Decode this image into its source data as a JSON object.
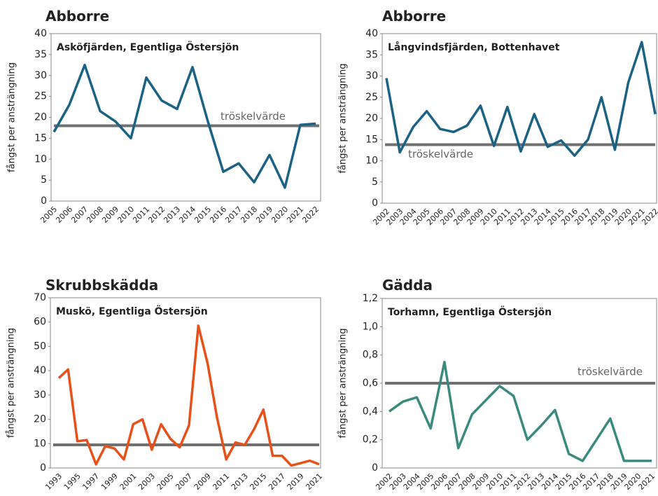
{
  "chart_data": [
    {
      "type": "line",
      "title": "Abborre",
      "subtitle": "Asköfjärden, Egentliga Östersjön",
      "ylabel": "fångst per ansträngning",
      "categories": [
        "2005",
        "2006",
        "2007",
        "2008",
        "2009",
        "2010",
        "2011",
        "2012",
        "2013",
        "2014",
        "2015",
        "2016",
        "2017",
        "2018",
        "2019",
        "2020",
        "2021",
        "2022"
      ],
      "values": [
        16.5,
        23,
        32.5,
        21.5,
        19,
        15,
        29.5,
        24,
        22,
        32,
        19,
        7,
        9,
        4.5,
        11,
        3.2,
        18.2,
        18.5
      ],
      "color": "#1b6285",
      "threshold": 18,
      "threshold_label": "tröskelvärde",
      "threshold_color": "#707070",
      "ylim": [
        0,
        40
      ],
      "yticks": [
        0,
        5,
        10,
        15,
        20,
        25,
        30,
        35,
        40
      ]
    },
    {
      "type": "line",
      "title": "Abborre",
      "subtitle": "Långvindsfjärden, Bottenhavet",
      "ylabel": "fångst per ansträngning",
      "categories": [
        "2002",
        "2003",
        "2004",
        "2005",
        "2006",
        "2007",
        "2008",
        "2009",
        "2010",
        "2011",
        "2012",
        "2013",
        "2014",
        "2015",
        "2016",
        "2017",
        "2018",
        "2019",
        "2020",
        "2021",
        "2022"
      ],
      "values": [
        29.5,
        12,
        18,
        21.7,
        17.5,
        16.8,
        18.3,
        23,
        13.5,
        22.7,
        12.2,
        21,
        13.3,
        14.8,
        11.2,
        15,
        25,
        12.6,
        28.5,
        38,
        21
      ],
      "color": "#1b6285",
      "threshold": 13.8,
      "threshold_label": "tröskelvärde",
      "threshold_color": "#707070",
      "ylim": [
        0,
        40
      ],
      "yticks": [
        0,
        5,
        10,
        15,
        20,
        25,
        30,
        35,
        40
      ]
    },
    {
      "type": "line",
      "title": "Skrubbskädda",
      "subtitle": "Muskö, Egentliga Östersjön",
      "ylabel": "fångst per ansträngning",
      "categories": [
        "1993",
        null,
        "1995",
        null,
        "1997",
        null,
        "1999",
        null,
        "2001",
        null,
        "2003",
        null,
        "2005",
        null,
        "2007",
        null,
        "2009",
        null,
        "2011",
        null,
        "2013",
        null,
        "2015",
        null,
        "2017",
        null,
        "2019",
        null,
        "2021"
      ],
      "values": [
        37,
        40.5,
        11,
        11.5,
        1.5,
        9,
        8,
        3.5,
        18,
        20,
        7.5,
        18,
        12,
        8.5,
        17.5,
        58.5,
        43,
        21,
        3.5,
        10.5,
        9.5,
        16,
        24,
        5,
        5,
        1,
        2,
        3,
        1.5
      ],
      "color": "#e8501a",
      "threshold": 9.5,
      "threshold_color": "#707070",
      "ylim": [
        0,
        70
      ],
      "yticks": [
        0,
        10,
        20,
        30,
        40,
        50,
        60,
        70
      ]
    },
    {
      "type": "line",
      "title": "Gädda",
      "subtitle": "Torhamn, Egentliga Östersjön",
      "ylabel": "fångst per ansträngning",
      "categories": [
        "2002",
        "2003",
        "2004",
        "2005",
        "2006",
        "2007",
        "2008",
        "2009",
        "2010",
        "2011",
        "2012",
        "2013",
        "2014",
        "2015",
        "2016",
        "2017",
        "2018",
        "2019",
        "2020",
        "2021"
      ],
      "values": [
        0.4,
        0.47,
        0.5,
        0.28,
        0.75,
        0.14,
        0.38,
        0.48,
        0.58,
        0.51,
        0.2,
        0.3,
        0.41,
        0.1,
        0.05,
        0.2,
        0.35,
        0.05,
        0.05,
        0.05
      ],
      "color": "#3a8a7e",
      "threshold": 0.6,
      "threshold_label": "tröskelvärde",
      "threshold_color": "#707070",
      "ylim": [
        0,
        1.2
      ],
      "yticks": [
        0,
        {
          "value": 0.2,
          "label": "0,2"
        },
        {
          "value": 0.4,
          "label": "0,4"
        },
        {
          "value": 0.6,
          "label": "0,6"
        },
        {
          "value": 0.8,
          "label": "0,8"
        },
        {
          "value": 1.0,
          "label": "1,0"
        },
        {
          "value": 1.2,
          "label": "1,2"
        }
      ]
    }
  ]
}
